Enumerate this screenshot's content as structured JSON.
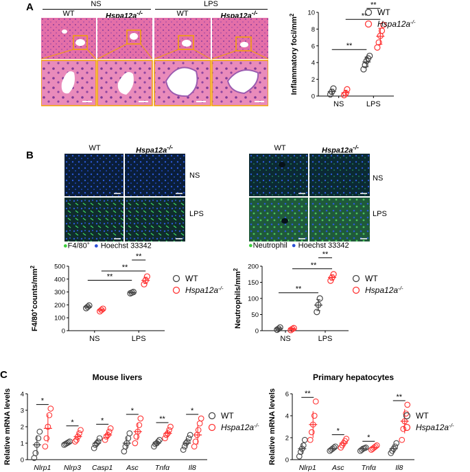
{
  "panelA": {
    "label": "A",
    "groups": [
      "NS",
      "LPS"
    ],
    "cols": [
      "WT",
      "Hspa12a",
      "WT",
      "Hspa12a"
    ],
    "ko_sup": "-/-",
    "chart_data": {
      "type": "scatter",
      "ylabel": "Inflammatory foci/mm",
      "ylabel_sup": "2",
      "categories": [
        "NS",
        "LPS"
      ],
      "ylim": [
        0,
        10
      ],
      "yticks": [
        0,
        2,
        4,
        6,
        8,
        10
      ],
      "series": [
        {
          "name": "WT",
          "color": "#444444",
          "points": {
            "NS": [
              0.2,
              0.5,
              0.9
            ],
            "LPS": [
              3.2,
              3.7,
              4.2,
              4.5,
              4.8
            ]
          }
        },
        {
          "name": "Hspa12a",
          "color": "#ff3333",
          "points": {
            "NS": [
              0.1,
              0.3,
              0.8
            ],
            "LPS": [
              5.8,
              6.4,
              7.2,
              7.8,
              8.5
            ]
          }
        }
      ],
      "sig": [
        "**",
        "**",
        "**"
      ]
    }
  },
  "panelB": {
    "label": "B",
    "left": {
      "cols": [
        "WT",
        "Hspa12a"
      ],
      "rows": [
        "NS",
        "LPS"
      ],
      "legend1": "F4/80",
      "legend1_sup": "+",
      "legend2": "Hoechst 33342"
    },
    "right": {
      "cols": [
        "WT",
        "Hspa12a"
      ],
      "rows": [
        "NS",
        "LPS"
      ],
      "legend1": "Neutrophil",
      "legend2": "Hoechst 33342"
    },
    "chart1": {
      "type": "scatter",
      "ylabel": "F4/80",
      "ylabel_sup": "+",
      "ylabel_rest": "counts/mm",
      "ylabel_sup2": "2",
      "categories": [
        "NS",
        "LPS"
      ],
      "ylim": [
        0,
        500
      ],
      "yticks": [
        0,
        100,
        200,
        300,
        400,
        500
      ],
      "series": [
        {
          "name": "WT",
          "color": "#444444",
          "points": {
            "NS": [
              175,
              185,
              195
            ],
            "LPS": [
              290,
              295,
              300
            ]
          }
        },
        {
          "name": "Hspa12a",
          "color": "#ff3333",
          "points": {
            "NS": [
              150,
              160,
              170
            ],
            "LPS": [
              360,
              390,
              420
            ]
          }
        }
      ],
      "sig": [
        "**",
        "**",
        "**"
      ]
    },
    "chart2": {
      "type": "scatter",
      "ylabel": "Neutrophils/mm",
      "ylabel_sup": "2",
      "categories": [
        "NS",
        "LPS"
      ],
      "ylim": [
        0,
        200
      ],
      "yticks": [
        0,
        50,
        100,
        150,
        200
      ],
      "series": [
        {
          "name": "WT",
          "color": "#444444",
          "points": {
            "NS": [
              3,
              6,
              10
            ],
            "LPS": [
              58,
              80,
              100
            ]
          }
        },
        {
          "name": "Hspa12a",
          "color": "#ff3333",
          "points": {
            "NS": [
              2,
              5,
              8
            ],
            "LPS": [
              155,
              165,
              175
            ]
          }
        }
      ],
      "sig": [
        "**",
        "**",
        "**"
      ]
    }
  },
  "panelC": {
    "label": "C",
    "chart1": {
      "type": "scatter",
      "title": "Mouse livers",
      "ylabel": "Relative mRNA levels",
      "categories": [
        "Nlrp1",
        "Nlrp3",
        "Casp1",
        "Asc",
        "Tnfα",
        "Il8"
      ],
      "ylim": [
        0,
        4
      ],
      "yticks": [
        0,
        1,
        2,
        3,
        4
      ],
      "series": [
        {
          "name": "WT",
          "color": "#444444",
          "means": [
            0.9,
            1.0,
            1.0,
            1.0,
            1.0,
            1.0
          ],
          "points": [
            [
              0.1,
              0.4,
              0.9,
              1.3,
              1.7
            ],
            [
              0.9,
              0.95,
              1.0,
              1.05,
              1.1
            ],
            [
              0.7,
              0.9,
              1.0,
              1.1,
              1.3
            ],
            [
              0.5,
              0.8,
              1.0,
              1.3,
              1.6
            ],
            [
              0.8,
              0.95,
              1.0,
              1.1,
              1.2
            ],
            [
              0.6,
              0.8,
              1.0,
              1.1,
              1.3,
              1.5
            ]
          ]
        },
        {
          "name": "Hspa12a",
          "color": "#ff3333",
          "means": [
            1.9,
            1.4,
            1.5,
            1.7,
            1.6,
            1.5
          ],
          "points": [
            [
              0.8,
              1.3,
              2.0,
              2.7,
              3.1
            ],
            [
              1.1,
              1.2,
              1.4,
              1.6,
              1.8
            ],
            [
              1.2,
              1.4,
              1.5,
              1.7,
              1.9
            ],
            [
              1.0,
              1.4,
              1.7,
              2.1,
              2.5
            ],
            [
              1.3,
              1.5,
              1.6,
              1.8,
              2.0
            ],
            [
              0.8,
              1.1,
              1.5,
              1.8,
              2.2,
              2.5
            ]
          ]
        }
      ],
      "sig": [
        "*",
        "*",
        "*",
        "*",
        "**",
        "*"
      ]
    },
    "chart2": {
      "type": "scatter",
      "title": "Primary  hepatocytes",
      "ylabel": "Relative mRNA levels",
      "categories": [
        "Nlrp1",
        "Asc",
        "Tnfα",
        "Il8"
      ],
      "ylim": [
        0,
        6
      ],
      "yticks": [
        0,
        2,
        4,
        6
      ],
      "series": [
        {
          "name": "WT",
          "color": "#444444",
          "means": [
            1.0,
            1.0,
            1.0,
            1.0
          ],
          "points": [
            [
              0.3,
              0.7,
              1.0,
              1.3,
              1.8
            ],
            [
              0.8,
              0.9,
              1.0,
              1.1,
              1.2
            ],
            [
              0.8,
              0.9,
              1.0,
              1.05,
              1.1
            ],
            [
              0.6,
              0.8,
              1.0,
              1.2,
              1.5
            ]
          ]
        },
        {
          "name": "Hspa12a",
          "color": "#ff3333",
          "means": [
            3.2,
            1.5,
            1.1,
            3.5
          ],
          "points": [
            [
              1.8,
              2.5,
              3.2,
              4.0,
              5.3
            ],
            [
              1.1,
              1.3,
              1.5,
              1.7,
              1.9
            ],
            [
              0.9,
              1.0,
              1.1,
              1.2,
              1.3
            ],
            [
              1.8,
              2.8,
              3.5,
              4.2,
              5.0
            ]
          ]
        }
      ],
      "sig": [
        "**",
        "*",
        "*",
        "**"
      ]
    }
  }
}
